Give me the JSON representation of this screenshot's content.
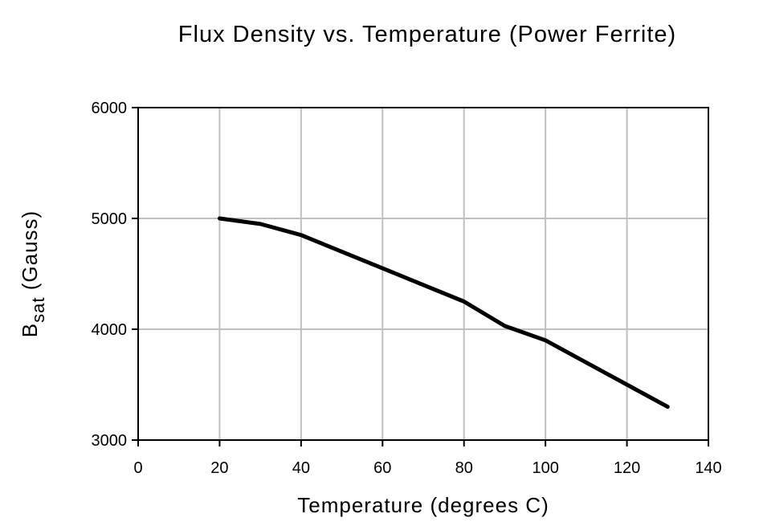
{
  "chart_data": {
    "type": "line",
    "title": "Flux Density vs. Temperature (Power Ferrite)",
    "xlabel": "Temperature (degrees C)",
    "ylabel": {
      "main": "B",
      "sub": "sat",
      "rest": " (Gauss)"
    },
    "xlim": [
      0,
      140
    ],
    "ylim": [
      3000,
      6000
    ],
    "x_ticks": [
      0,
      20,
      40,
      60,
      80,
      100,
      120,
      140
    ],
    "y_ticks": [
      3000,
      4000,
      5000,
      6000
    ],
    "x_tick_labels": [
      "0",
      "20",
      "40",
      "60",
      "80",
      "100",
      "120",
      "140"
    ],
    "y_tick_labels": [
      "3000",
      "4000",
      "5000",
      "6000"
    ],
    "grid": true,
    "legend": "none",
    "series": [
      {
        "color": "#000000",
        "x": [
          20,
          30,
          40,
          50,
          60,
          70,
          80,
          90,
          100,
          110,
          120,
          130
        ],
        "y": [
          5000,
          4950,
          4850,
          4700,
          4550,
          4400,
          4250,
          4030,
          3900,
          3700,
          3500,
          3300
        ]
      }
    ]
  }
}
